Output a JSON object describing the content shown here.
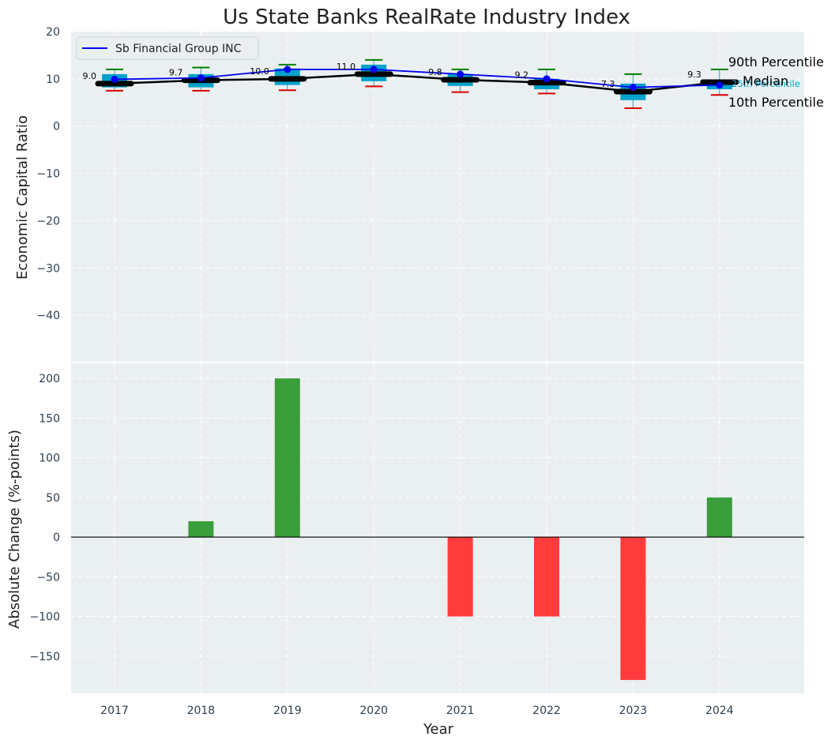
{
  "chart_data": [
    {
      "type": "box_line",
      "title": "Us State Banks RealRate Industry Index",
      "ylabel": "Economic Capital Ratio",
      "ylim": [
        -50,
        20
      ],
      "yticks": [
        20,
        10,
        0,
        -10,
        -20,
        -30,
        -40
      ],
      "categories": [
        "2017",
        "2018",
        "2019",
        "2020",
        "2021",
        "2022",
        "2023",
        "2024"
      ],
      "legend": {
        "position": "top-left",
        "entries": [
          "Sb Financial Group INC"
        ]
      },
      "series": [
        {
          "name": "Sb Financial Group INC",
          "color": "#0000ee",
          "values": [
            9.9,
            10.2,
            12.0,
            12.0,
            11.0,
            10.0,
            8.2,
            8.7
          ]
        },
        {
          "name": "Median",
          "color": "#000000",
          "values": [
            9.0,
            9.7,
            10.0,
            11.0,
            9.8,
            9.2,
            7.3,
            9.3
          ]
        }
      ],
      "percentiles": {
        "p10": [
          7.5,
          7.5,
          7.6,
          8.4,
          7.2,
          6.9,
          3.8,
          6.6
        ],
        "p25": [
          8.2,
          8.2,
          8.7,
          9.5,
          8.5,
          7.8,
          5.5,
          7.8
        ],
        "p75": [
          11.0,
          11.0,
          12.2,
          13.0,
          11.0,
          10.0,
          9.0,
          9.8
        ],
        "p90": [
          12.0,
          12.4,
          13.0,
          14.0,
          12.0,
          12.0,
          11.0,
          12.0
        ]
      },
      "median_labels": [
        "9.0",
        "9.7",
        "10.0",
        "11.0",
        "9.8",
        "9.2",
        "7.3",
        "9.3"
      ],
      "side_labels": {
        "p90": "90th Percentile",
        "median": "Median",
        "p25": "25th Percentile",
        "p10": "10th Percentile"
      },
      "colors": {
        "box": "#00a2c9",
        "whisker_top": "#008000",
        "whisker_bottom": "#dd0000",
        "median": "#000000"
      }
    },
    {
      "type": "bar",
      "xlabel": "Year",
      "ylabel": "Absolute Change (%-points)",
      "ylim": [
        -197,
        220
      ],
      "yticks": [
        200,
        150,
        100,
        50,
        0,
        -50,
        -100,
        -150
      ],
      "categories": [
        "2017",
        "2018",
        "2019",
        "2020",
        "2021",
        "2022",
        "2023",
        "2024"
      ],
      "values": [
        0,
        20,
        200,
        0,
        -100,
        -100,
        -180,
        50
      ],
      "colors": {
        "positive": "#3a9e3a",
        "negative": "#ff3b3b"
      }
    }
  ]
}
